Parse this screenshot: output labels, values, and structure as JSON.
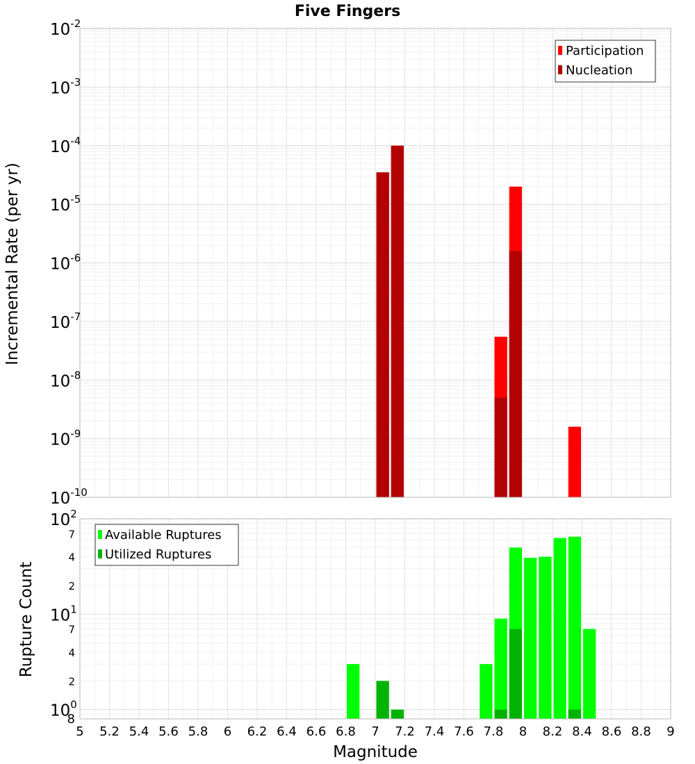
{
  "chart_data": {
    "type": "bar",
    "title": "Five Fingers",
    "xlabel": "Magnitude",
    "xlim": [
      5,
      9
    ],
    "x_ticks": [
      "5",
      "5.2",
      "5.4",
      "5.6",
      "5.8",
      "6",
      "6.2",
      "6.4",
      "6.6",
      "6.8",
      "7",
      "7.2",
      "7.4",
      "7.6",
      "7.8",
      "8",
      "8.2",
      "8.4",
      "8.6",
      "8.8",
      "9"
    ],
    "bin_width": 0.1,
    "panels": [
      {
        "ylabel": "Incremental Rate (per yr)",
        "yscale": "log",
        "ylim": [
          1e-10,
          0.01
        ],
        "y_tick_labels": [
          {
            "base": "10",
            "exp": "-10"
          },
          {
            "base": "10",
            "exp": "-9"
          },
          {
            "base": "10",
            "exp": "-8"
          },
          {
            "base": "10",
            "exp": "-7"
          },
          {
            "base": "10",
            "exp": "-6"
          },
          {
            "base": "10",
            "exp": "-5"
          },
          {
            "base": "10",
            "exp": "-4"
          },
          {
            "base": "10",
            "exp": "-3"
          },
          {
            "base": "10",
            "exp": "-2"
          }
        ],
        "legend_position": "top-right",
        "series": [
          {
            "name": "Participation",
            "color": "#ff0000",
            "x": [
              7.05,
              7.15,
              7.85,
              7.95,
              8.35
            ],
            "values": [
              3.5e-05,
              0.0001,
              5.5e-08,
              2e-05,
              1.6e-09
            ]
          },
          {
            "name": "Nucleation",
            "color": "#b30000",
            "x": [
              7.05,
              7.15,
              7.85,
              7.95
            ],
            "values": [
              3.5e-05,
              0.0001,
              5e-09,
              1.6e-06
            ]
          }
        ]
      },
      {
        "ylabel": "Rupture Count",
        "yscale": "log",
        "ylim": [
          0.8,
          100
        ],
        "y_major_labels": [
          {
            "base": "10",
            "exp": "0"
          },
          {
            "base": "10",
            "exp": "1"
          },
          {
            "base": "10",
            "exp": "2"
          }
        ],
        "y_minor_labels": [
          "8",
          "2",
          "4",
          "7",
          "2",
          "4",
          "7"
        ],
        "legend_position": "top-left",
        "series": [
          {
            "name": "Available Ruptures",
            "color": "#00ff00",
            "x": [
              6.85,
              7.75,
              7.85,
              7.95,
              8.05,
              8.15,
              8.25,
              8.35,
              8.45
            ],
            "values": [
              3,
              3,
              9,
              50,
              39,
              40,
              63,
              65,
              7
            ]
          },
          {
            "name": "Utilized Ruptures",
            "color": "#00b300",
            "x": [
              7.05,
              7.15,
              7.85,
              7.95,
              8.35
            ],
            "values": [
              2,
              1,
              1,
              7,
              1
            ]
          }
        ]
      }
    ]
  }
}
